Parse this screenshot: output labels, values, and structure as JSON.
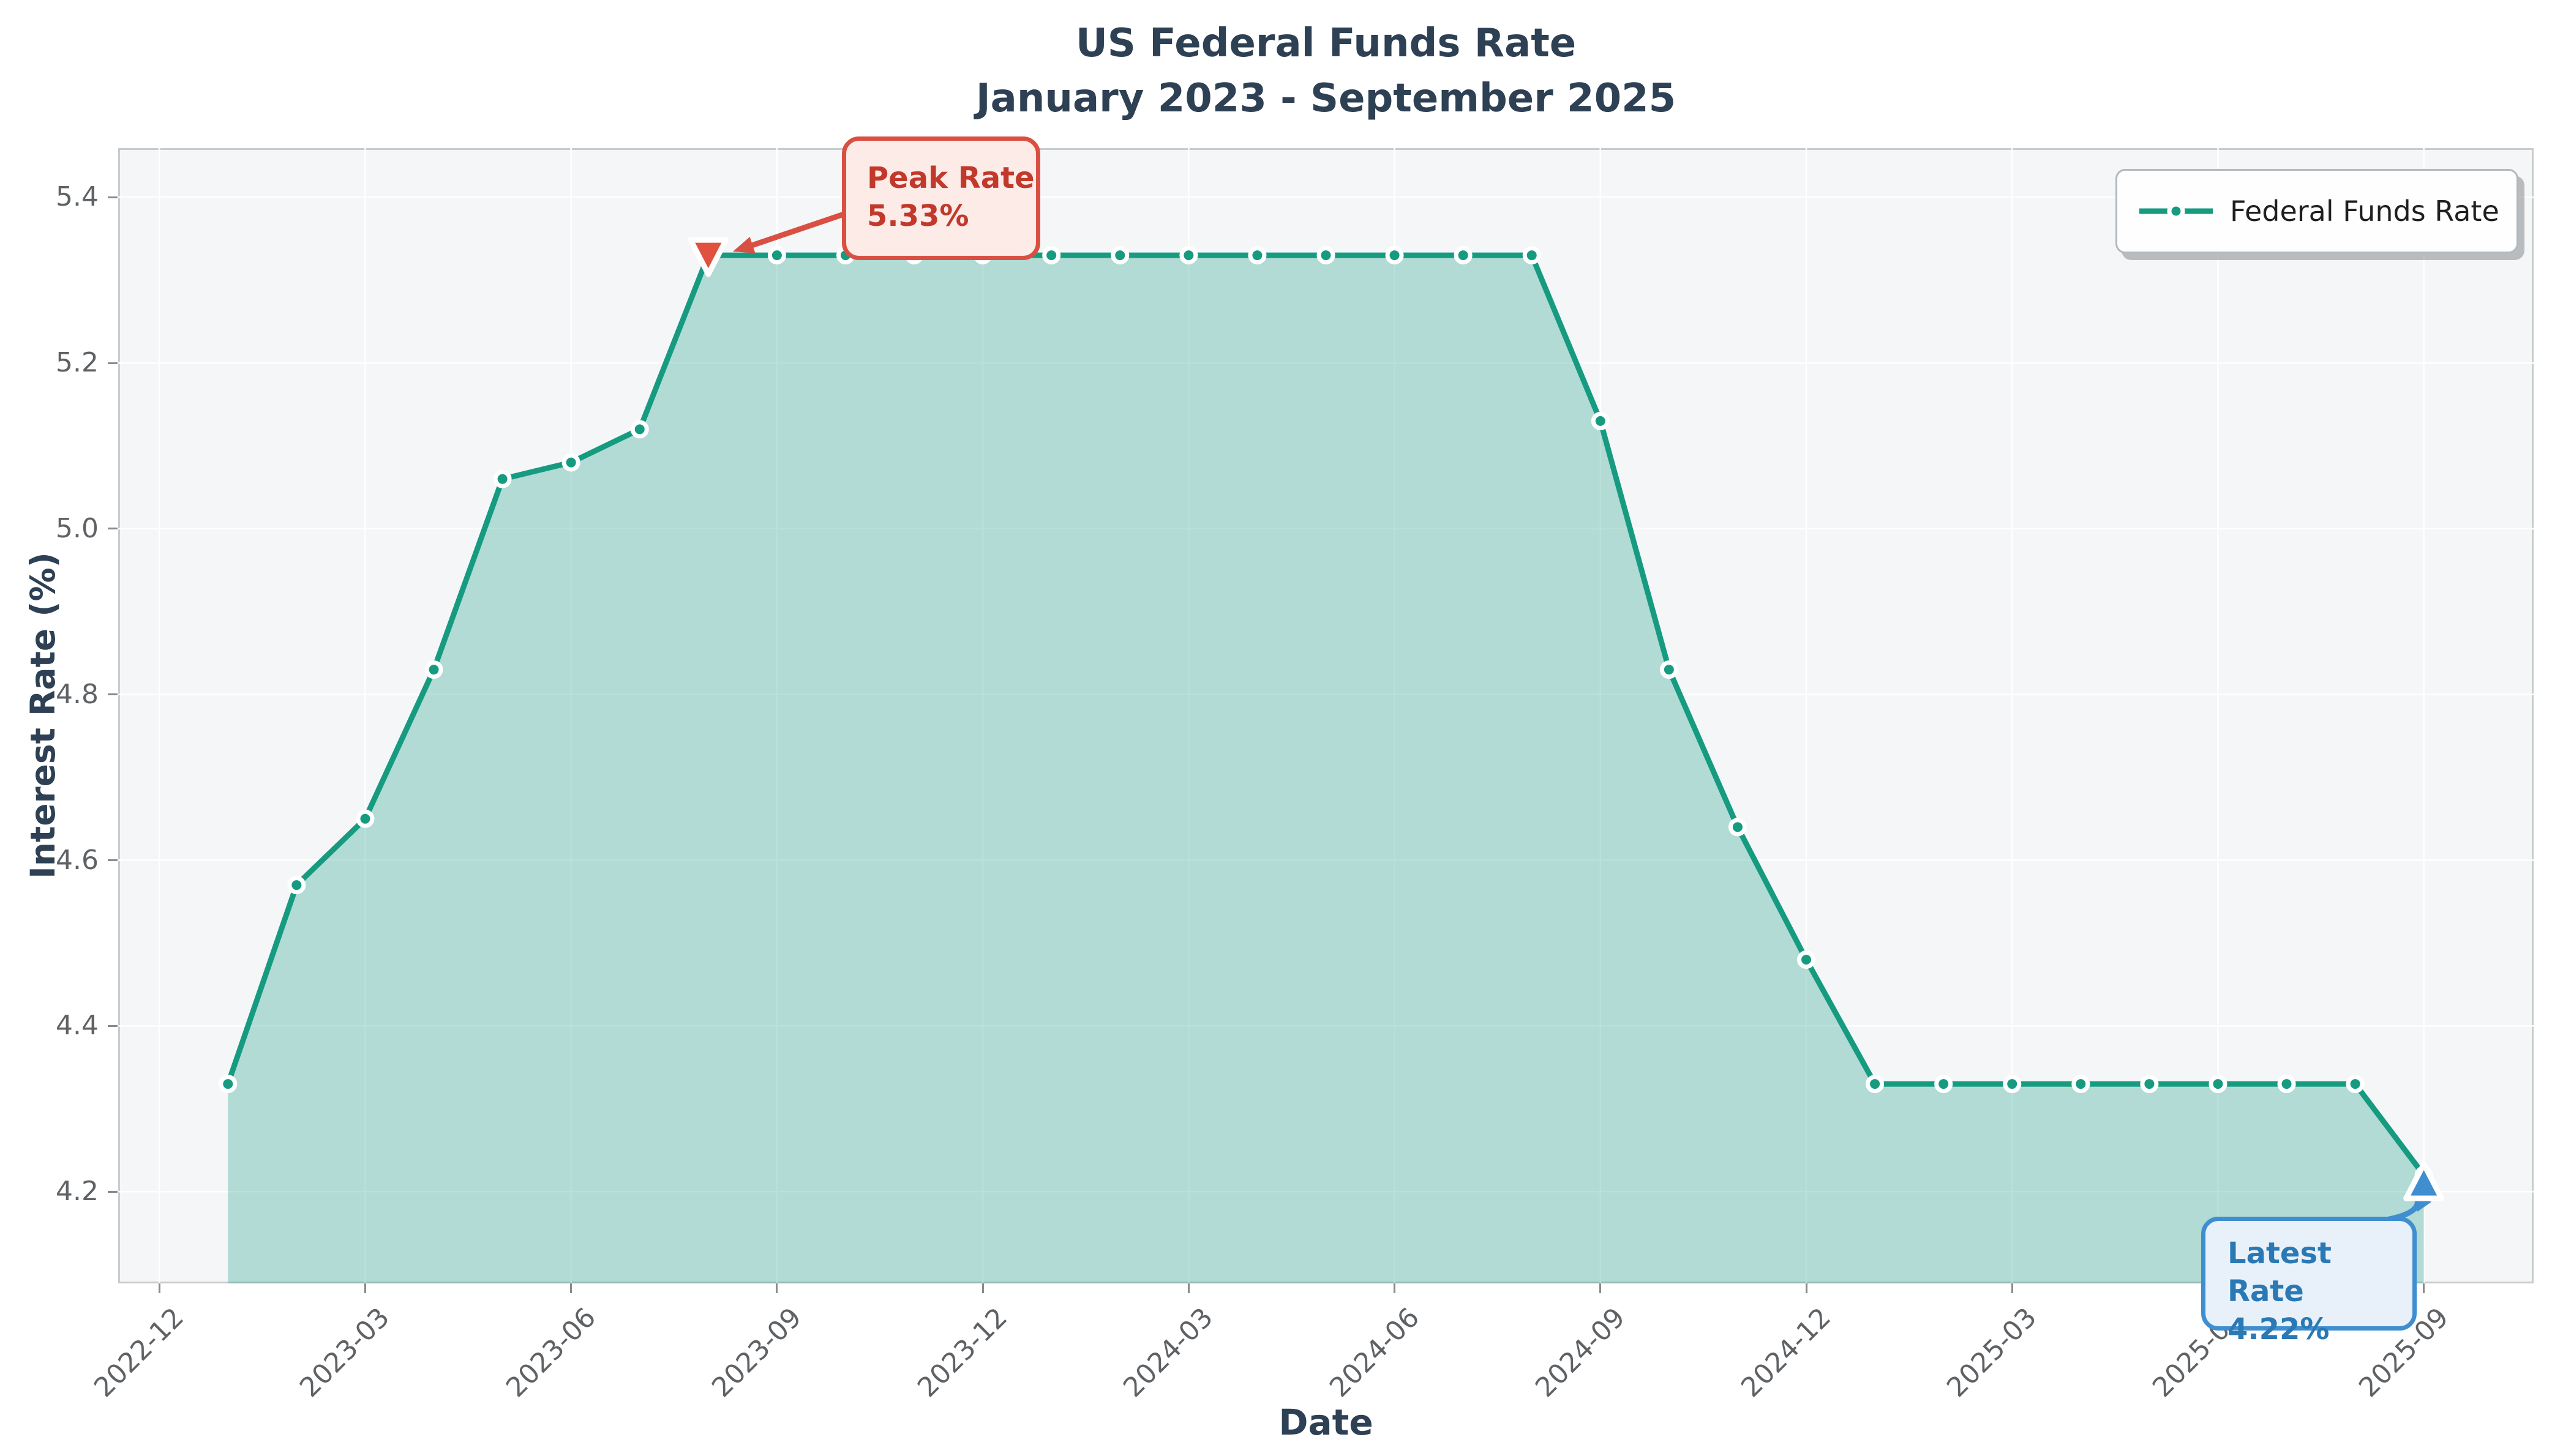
{
  "title": {
    "line1": "US Federal Funds Rate",
    "line2": "January 2023 - September 2025"
  },
  "axes": {
    "x_label": "Date",
    "y_label": "Interest Rate (%)",
    "y_ticks": [
      {
        "label": "5.4",
        "value": 5.4
      },
      {
        "label": "5.2",
        "value": 5.2
      },
      {
        "label": "5.0",
        "value": 5.0
      },
      {
        "label": "4.8",
        "value": 4.8
      },
      {
        "label": "4.6",
        "value": 4.6
      },
      {
        "label": "4.4",
        "value": 4.4
      },
      {
        "label": "4.2",
        "value": 4.2
      }
    ],
    "x_ticks": [
      {
        "label": "2022-12",
        "month": -1
      },
      {
        "label": "2023-03",
        "month": 2
      },
      {
        "label": "2023-06",
        "month": 5
      },
      {
        "label": "2023-09",
        "month": 8
      },
      {
        "label": "2023-12",
        "month": 11
      },
      {
        "label": "2024-03",
        "month": 14
      },
      {
        "label": "2024-06",
        "month": 17
      },
      {
        "label": "2024-09",
        "month": 20
      },
      {
        "label": "2024-12",
        "month": 23
      },
      {
        "label": "2025-03",
        "month": 26
      },
      {
        "label": "2025-06",
        "month": 29
      },
      {
        "label": "2025-09",
        "month": 32
      }
    ]
  },
  "legend": {
    "label": "Federal Funds Rate"
  },
  "annotations": {
    "peak": {
      "title": "Peak Rate",
      "value": "5.33%",
      "month": 7,
      "rate": 5.33,
      "marker": "triangle-down"
    },
    "latest": {
      "title": "Latest Rate",
      "value": "4.22%",
      "month": 32,
      "rate": 4.22,
      "marker": "triangle-up"
    }
  },
  "colors": {
    "line": "#169b81",
    "fill": "rgba(22,155,129,0.3)",
    "marker_edge": "#ffffff",
    "grid": "#ffffff",
    "plot_background": "#f4f6f8",
    "title_text": "#2e4053",
    "tick_text": "#5f6265",
    "peak_accent": "#d95042",
    "peak_marker": "#e0523f",
    "latest_accent": "#3e8ed0"
  },
  "chart_data": {
    "type": "line",
    "filled_area": true,
    "markers": true,
    "grid": true,
    "legend_position": "upper right",
    "title": "US Federal Funds Rate January 2023 - September 2025",
    "xlabel": "Date",
    "ylabel": "Interest Rate (%)",
    "series_name": "Federal Funds Rate",
    "x": [
      "2023-01",
      "2023-02",
      "2023-03",
      "2023-04",
      "2023-05",
      "2023-06",
      "2023-07",
      "2023-08",
      "2023-09",
      "2023-10",
      "2023-11",
      "2023-12",
      "2024-01",
      "2024-02",
      "2024-03",
      "2024-04",
      "2024-05",
      "2024-06",
      "2024-07",
      "2024-08",
      "2024-09",
      "2024-10",
      "2024-11",
      "2024-12",
      "2025-01",
      "2025-02",
      "2025-03",
      "2025-04",
      "2025-05",
      "2025-06",
      "2025-07",
      "2025-08",
      "2025-09"
    ],
    "values": [
      4.33,
      4.57,
      4.65,
      4.83,
      5.06,
      5.08,
      5.12,
      5.33,
      5.33,
      5.33,
      5.33,
      5.33,
      5.33,
      5.33,
      5.33,
      5.33,
      5.33,
      5.33,
      5.33,
      5.33,
      5.13,
      4.83,
      4.64,
      4.48,
      4.33,
      4.33,
      4.33,
      4.33,
      4.33,
      4.33,
      4.33,
      4.33,
      4.22
    ],
    "peak_value": 5.33,
    "latest_value": 4.22,
    "ylim": [
      4.0893,
      5.4593
    ],
    "xlim_months": [
      -1.6,
      33.6
    ]
  }
}
